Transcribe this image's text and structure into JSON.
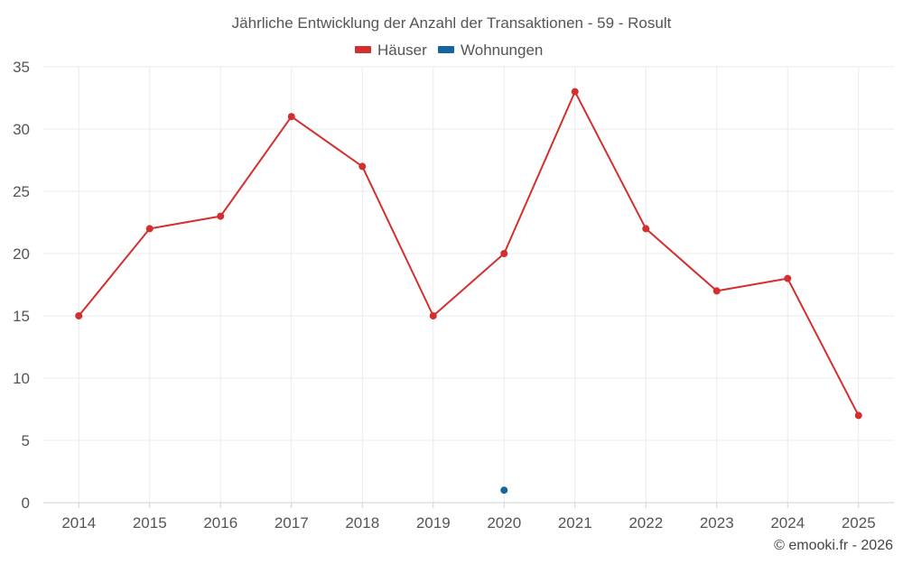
{
  "chart_data": {
    "type": "line",
    "title": "Jährliche Entwicklung der Anzahl der Transaktionen - 59 - Rosult",
    "categories": [
      "2014",
      "2015",
      "2016",
      "2017",
      "2018",
      "2019",
      "2020",
      "2021",
      "2022",
      "2023",
      "2024",
      "2025"
    ],
    "series": [
      {
        "name": "Häuser",
        "color": "#d32f2f",
        "values": [
          15,
          22,
          23,
          31,
          27,
          15,
          20,
          33,
          22,
          17,
          18,
          7
        ]
      },
      {
        "name": "Wohnungen",
        "color": "#1565a0",
        "values": [
          null,
          null,
          null,
          null,
          null,
          null,
          1,
          null,
          null,
          null,
          null,
          null
        ]
      }
    ],
    "ylim": [
      0,
      35
    ],
    "yticks": [
      0,
      5,
      10,
      15,
      20,
      25,
      30,
      35
    ],
    "xlabel": "",
    "ylabel": "",
    "grid": true,
    "legend_position": "top-center"
  },
  "credit": "© emooki.fr - 2026"
}
